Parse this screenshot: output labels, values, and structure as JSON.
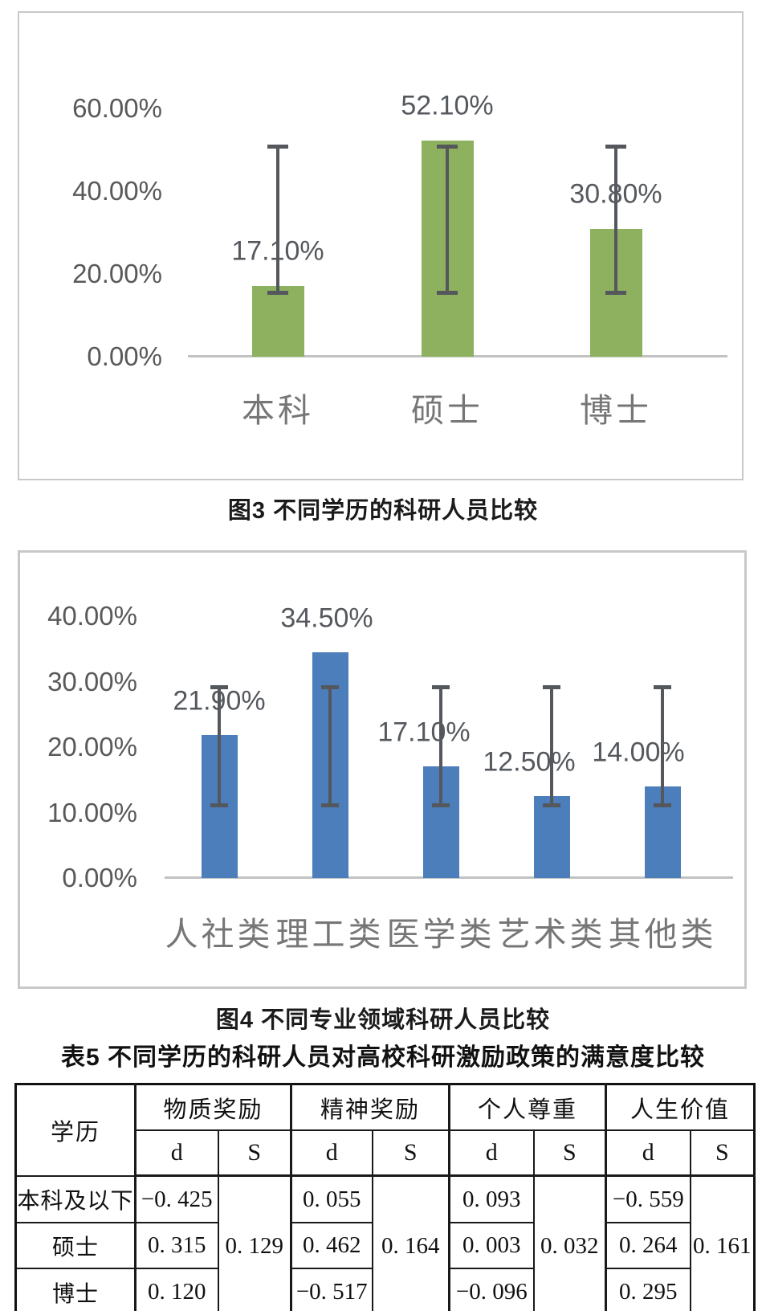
{
  "captions": {
    "fig3": "图3 不同学历的科研人员比较",
    "fig4": "图4 不同专业领域科研人员比较"
  },
  "table": {
    "title": "表5 不同学历的科研人员对高校科研激励政策的满意度比较",
    "corner_header": "学历",
    "groups": [
      "物质奖励",
      "精神奖励",
      "个人尊重",
      "人生价值"
    ],
    "sub_d": "d",
    "sub_s": "S",
    "rows": [
      {
        "label": "本科及以下",
        "d": [
          "−0. 425",
          "0. 055",
          "0. 093",
          "−0. 559"
        ]
      },
      {
        "label": "硕士",
        "d": [
          "0. 315",
          "0. 462",
          "0. 003",
          "0. 264"
        ]
      },
      {
        "label": "博士",
        "d": [
          "0. 120",
          "−0. 517",
          "−0. 096",
          "0. 295"
        ]
      }
    ],
    "s_values": [
      "0. 129",
      "0. 164",
      "0. 032",
      "0. 161"
    ]
  },
  "chart_data": [
    {
      "type": "bar",
      "title": "不同学历的科研人员比较",
      "categories": [
        "本科",
        "硕士",
        "博士"
      ],
      "values": [
        17.1,
        52.1,
        30.8
      ],
      "labels": [
        "17.10%",
        "52.10%",
        "30.80%"
      ],
      "ylim": [
        0,
        60
      ],
      "yticks": [
        {
          "v": 60,
          "label": "60.00%"
        },
        {
          "v": 40,
          "label": "40.00%"
        },
        {
          "v": 20,
          "label": "20.00%"
        },
        {
          "v": 0,
          "label": "0.00%"
        }
      ],
      "error_bars": {
        "low": 15.5,
        "high": 50.9
      },
      "bar_color": "#8db15e",
      "grid": false,
      "legend": "none"
    },
    {
      "type": "bar",
      "title": "不同专业领域科研人员比较",
      "categories": [
        "人社类",
        "理工类",
        "医学类",
        "艺术类",
        "其他类"
      ],
      "values": [
        21.9,
        34.5,
        17.1,
        12.5,
        14.0
      ],
      "labels": [
        "21.90%",
        "34.50%",
        "17.10%",
        "12.50%",
        "14.00%"
      ],
      "ylim": [
        0,
        40
      ],
      "yticks": [
        {
          "v": 40,
          "label": "40.00%"
        },
        {
          "v": 30,
          "label": "30.00%"
        },
        {
          "v": 20,
          "label": "20.00%"
        },
        {
          "v": 10,
          "label": "10.00%"
        },
        {
          "v": 0,
          "label": "0.00%"
        }
      ],
      "error_bars": {
        "low": 11.2,
        "high": 29.2
      },
      "bar_color": "#4b7ebb",
      "grid": false,
      "legend": "none"
    }
  ]
}
